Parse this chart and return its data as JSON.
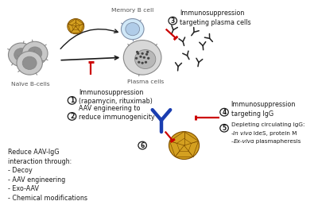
{
  "bg_color": "#ffffff",
  "memory_b_cell_label": "Memory B cell",
  "naive_b_cells_label": "Naïve B-cells",
  "plasma_cells_label": "Plasma cells",
  "red": "#cc0000",
  "black": "#1a1a1a",
  "blue": "#1a3db0",
  "gold1": "#d4a020",
  "gold2": "#b88010",
  "gold_edge": "#805000",
  "gray_cell_fc": "#c8c8c8",
  "gray_cell_ec": "#888888",
  "gray_nucleus": "#909090",
  "plasma_fc": "#d8d8d8",
  "memory_fc": "#d0e8f8",
  "memory_nuc": "#b0cce8",
  "memory_ec": "#8090a8",
  "text_col": "#555555",
  "ab_color": "#222222",
  "fs_main": 5.8,
  "fs_small": 5.2,
  "fs_label": 5.4
}
